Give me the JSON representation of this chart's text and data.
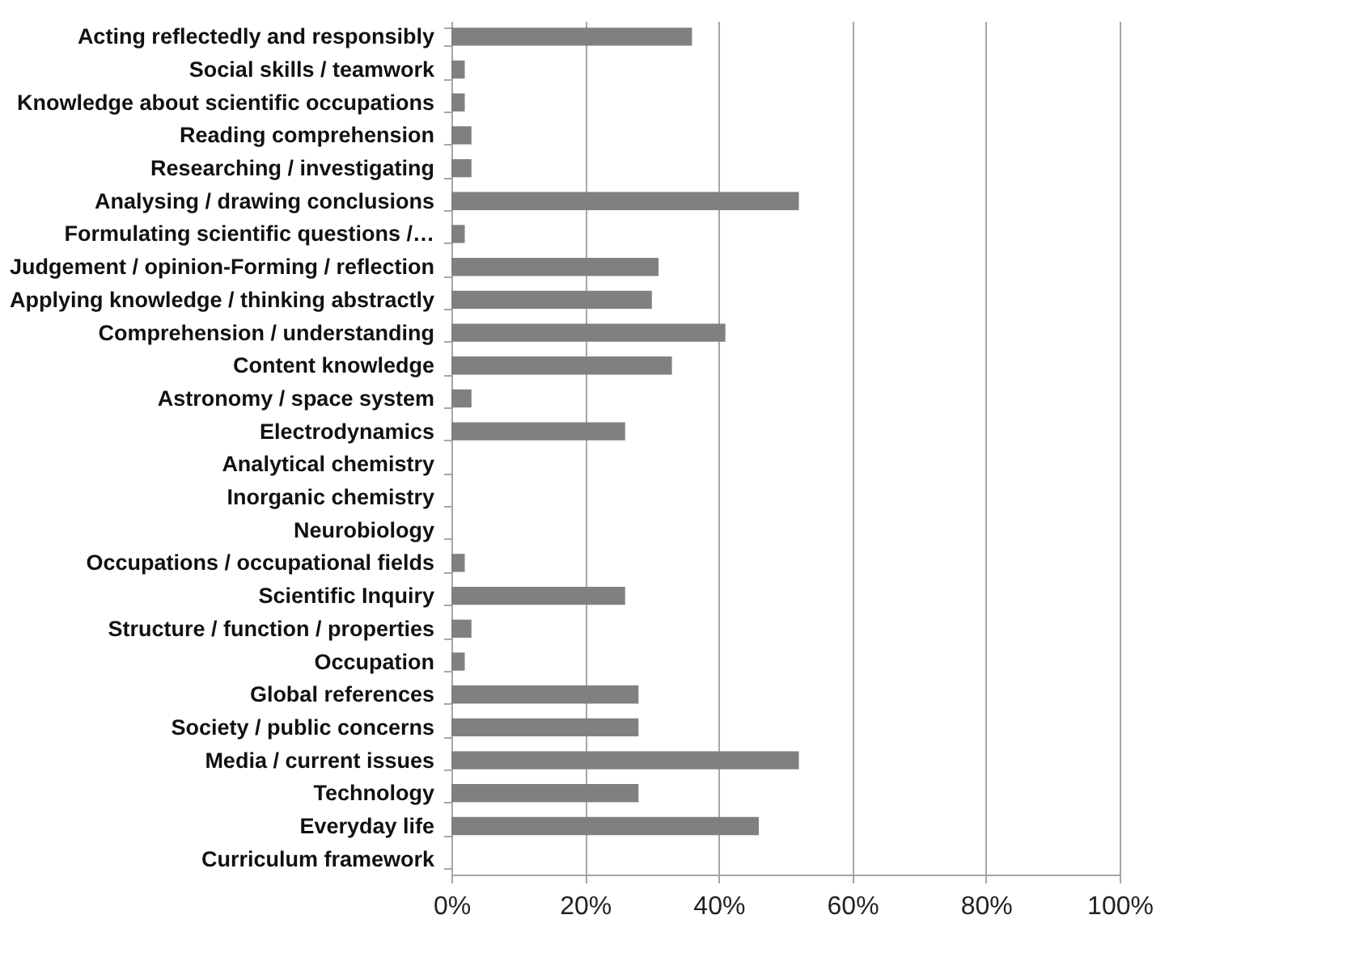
{
  "chart_data": {
    "type": "bar",
    "orientation": "horizontal",
    "categories": [
      "Acting reflectedly and responsibly",
      "Social skills / teamwork",
      "Knowledge about scientific occupations",
      "Reading comprehension",
      "Researching / investigating",
      "Analysing / drawing conclusions",
      "Formulating scientific questions /…",
      "Judgement / opinion-Forming / reflection",
      "Applying knowledge / thinking abstractly",
      "Comprehension / understanding",
      "Content knowledge",
      "Astronomy / space system",
      "Electrodynamics",
      "Analytical chemistry",
      "Inorganic chemistry",
      "Neurobiology",
      "Occupations / occupational fields",
      "Scientific Inquiry",
      "Structure / function / properties",
      "Occupation",
      "Global references",
      "Society / public concerns",
      "Media / current issues",
      "Technology",
      "Everyday life",
      "Curriculum framework"
    ],
    "values": [
      36,
      2,
      2,
      3,
      3,
      52,
      2,
      31,
      30,
      41,
      33,
      3,
      26,
      0,
      0,
      0,
      2,
      26,
      3,
      2,
      28,
      28,
      52,
      28,
      46,
      0
    ],
    "color": "#808080",
    "xlim": [
      0,
      100
    ],
    "xticks": [
      {
        "value": 0,
        "label": "0%"
      },
      {
        "value": 20,
        "label": "20%"
      },
      {
        "value": 40,
        "label": "40%"
      },
      {
        "value": 60,
        "label": "60%"
      },
      {
        "value": 80,
        "label": "80%"
      },
      {
        "value": 100,
        "label": "100%"
      }
    ],
    "grid": "x"
  }
}
